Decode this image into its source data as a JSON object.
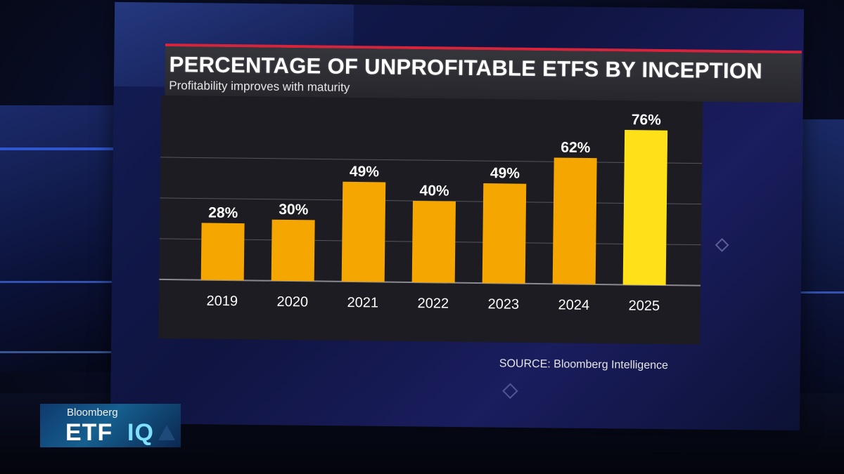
{
  "chart_data": {
    "type": "bar",
    "title": "PERCENTAGE OF UNPROFITABLE ETFS BY INCEPTION",
    "subtitle": "Profitability improves with maturity",
    "categories": [
      "2019",
      "2020",
      "2021",
      "2022",
      "2023",
      "2024",
      "2025"
    ],
    "values": [
      28,
      30,
      49,
      40,
      49,
      62,
      76
    ],
    "data_labels": [
      "28%",
      "30%",
      "49%",
      "40%",
      "49%",
      "62%",
      "76%"
    ],
    "ylim": [
      0,
      80
    ],
    "xlabel": "",
    "ylabel": "",
    "grid": true,
    "legend": "none",
    "colors": {
      "bar": "#f5a600",
      "bar_highlight": "#ffe11a",
      "highlight_index": 6
    }
  },
  "source": "SOURCE: Bloomberg Intelligence",
  "badge": {
    "brand": "Bloomberg",
    "show_a": "ETF",
    "show_b": "IQ"
  }
}
